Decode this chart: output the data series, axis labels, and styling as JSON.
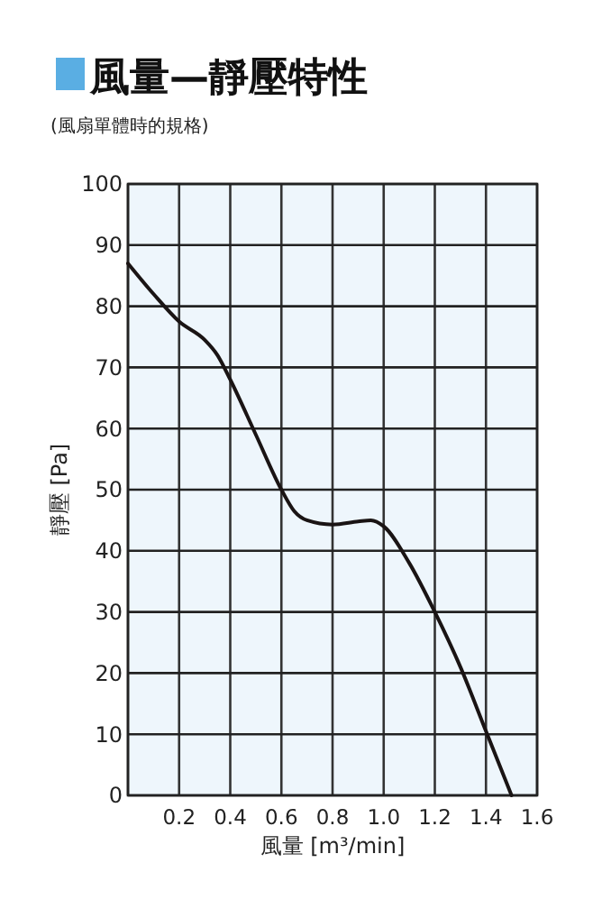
{
  "chart_data": {
    "type": "line",
    "title": "風量—靜壓特性",
    "subtitle": "(風扇單體時的規格)",
    "xlabel": "風量 [m³/min]",
    "ylabel": "靜壓 [Pa]",
    "x": [
      0,
      0.1,
      0.2,
      0.3,
      0.35,
      0.4,
      0.5,
      0.6,
      0.65,
      0.7,
      0.8,
      0.9,
      0.95,
      1.0,
      1.1,
      1.2,
      1.3,
      1.4,
      1.5
    ],
    "series": [
      {
        "color": "#1a1414",
        "values": [
          87,
          82,
          77.5,
          74.5,
          72,
          68,
          59,
          50,
          46.5,
          45,
          44.3,
          44.8,
          45,
          44,
          38,
          30,
          21,
          10.5,
          0
        ]
      }
    ],
    "xlim": [
      0,
      1.6
    ],
    "ylim": [
      0,
      100
    ],
    "xticks": [
      {
        "value": 0,
        "label": null
      },
      0.2,
      0.4,
      0.6,
      0.8,
      {
        "value": 1,
        "label": "1.0"
      },
      1.2,
      1.4,
      1.6
    ],
    "yticks": [
      0,
      10,
      20,
      30,
      40,
      50,
      60,
      70,
      80,
      90,
      100
    ],
    "grid": true,
    "marker": "none",
    "line_style": "solid"
  }
}
